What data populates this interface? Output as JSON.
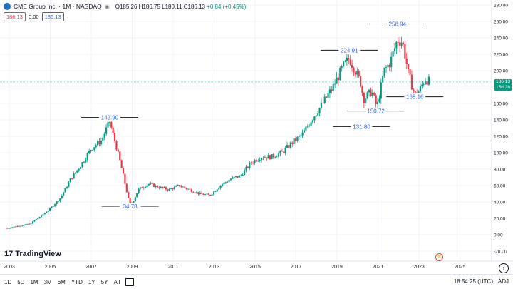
{
  "header": {
    "title": "CME Group Inc. · 1M · NASDAQ",
    "ohlc_o": "O185.26",
    "ohlc_h": "H186.75",
    "ohlc_l": "L180.11",
    "ohlc_c": "C186.13",
    "change": "+0.84 (+0.45%)",
    "sell_price": "186.13",
    "spread": "0.00",
    "buy_price": "186.13"
  },
  "branding": {
    "name": "TradingView"
  },
  "price_label": {
    "value": "186.13",
    "countdown": "15d 2h"
  },
  "bottom_bar": {
    "ranges": [
      "1D",
      "5D",
      "1M",
      "3M",
      "6M",
      "YTD",
      "1Y",
      "5Y",
      "All"
    ],
    "time": "18:54:25 (UTC)",
    "adj": "ADJ"
  },
  "colors": {
    "up": "#089981",
    "down": "#f23645",
    "accent": "#2962ff",
    "grid": "#f0f3fa"
  },
  "chart_data": {
    "type": "candlestick",
    "title": "CME Group Inc. · 1M · NASDAQ",
    "ylim": [
      -20,
      280
    ],
    "xlim": [
      2002.8,
      2025.8
    ],
    "y_ticks": [
      "280.00",
      "260.00",
      "240.00",
      "220.00",
      "200.00",
      "180.00",
      "160.00",
      "140.00",
      "120.00",
      "100.00",
      "80.00",
      "60.00",
      "40.00",
      "20.00",
      "0.00",
      "-20.00"
    ],
    "x_ticks": [
      "2003",
      "2005",
      "2007",
      "2009",
      "2011",
      "2013",
      "2015",
      "2017",
      "2019",
      "2021",
      "2023",
      "2025"
    ],
    "current_price": 186.13,
    "annotations": [
      {
        "label": "142.90",
        "date": 2007.9,
        "price": 142.9,
        "type": "high"
      },
      {
        "label": "34.78",
        "date": 2008.9,
        "price": 34.78,
        "type": "low"
      },
      {
        "label": "224.91",
        "date": 2019.6,
        "price": 224.91,
        "type": "high"
      },
      {
        "label": "131.80",
        "date": 2020.2,
        "price": 131.8,
        "type": "low"
      },
      {
        "label": "150.72",
        "date": 2020.9,
        "price": 150.72,
        "type": "low"
      },
      {
        "label": "256.94",
        "date": 2021.95,
        "price": 256.94,
        "type": "high"
      },
      {
        "label": "168.16",
        "date": 2022.8,
        "price": 168.16,
        "type": "low"
      }
    ],
    "price_path": [
      [
        2002.9,
        8
      ],
      [
        2003.5,
        11
      ],
      [
        2004.0,
        13
      ],
      [
        2004.5,
        22
      ],
      [
        2005.0,
        32
      ],
      [
        2005.5,
        45
      ],
      [
        2006.0,
        68
      ],
      [
        2006.5,
        85
      ],
      [
        2007.0,
        105
      ],
      [
        2007.5,
        115
      ],
      [
        2007.9,
        138
      ],
      [
        2008.2,
        110
      ],
      [
        2008.5,
        80
      ],
      [
        2008.8,
        45
      ],
      [
        2008.95,
        35
      ],
      [
        2009.3,
        55
      ],
      [
        2009.8,
        62
      ],
      [
        2010.3,
        58
      ],
      [
        2010.8,
        55
      ],
      [
        2011.3,
        60
      ],
      [
        2011.8,
        55
      ],
      [
        2012.3,
        50
      ],
      [
        2012.8,
        48
      ],
      [
        2013.3,
        60
      ],
      [
        2013.8,
        68
      ],
      [
        2014.3,
        72
      ],
      [
        2014.8,
        88
      ],
      [
        2015.3,
        95
      ],
      [
        2015.8,
        95
      ],
      [
        2016.3,
        100
      ],
      [
        2016.8,
        112
      ],
      [
        2017.3,
        122
      ],
      [
        2017.8,
        142
      ],
      [
        2018.3,
        160
      ],
      [
        2018.8,
        180
      ],
      [
        2019.3,
        205
      ],
      [
        2019.6,
        215
      ],
      [
        2019.9,
        200
      ],
      [
        2020.15,
        185
      ],
      [
        2020.3,
        165
      ],
      [
        2020.7,
        175
      ],
      [
        2020.95,
        155
      ],
      [
        2021.3,
        200
      ],
      [
        2021.6,
        210
      ],
      [
        2021.95,
        238
      ],
      [
        2022.2,
        235
      ],
      [
        2022.5,
        195
      ],
      [
        2022.8,
        170
      ],
      [
        2023.0,
        175
      ],
      [
        2023.3,
        190
      ],
      [
        2023.55,
        186.13
      ]
    ]
  }
}
